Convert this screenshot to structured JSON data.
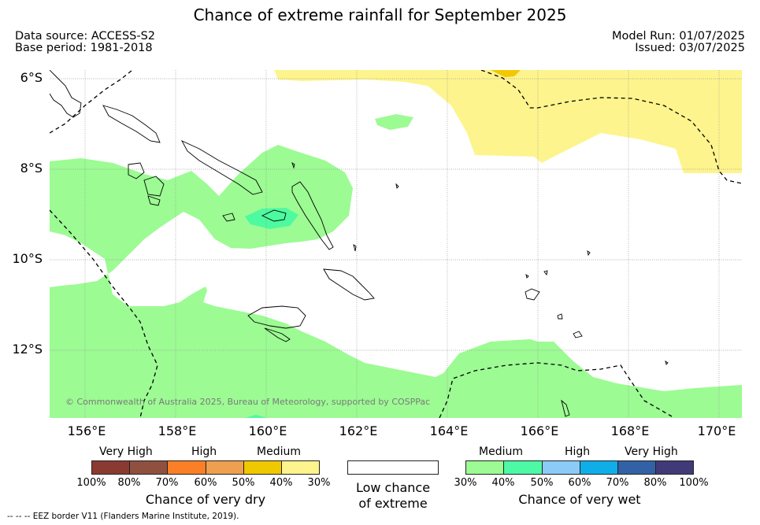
{
  "title": "Chance of extreme rainfall for September 2025",
  "meta": {
    "data_source": "Data source: ACCESS-S2",
    "base_period": "Base period: 1981-2018",
    "model_run": "Model Run: 01/07/2025",
    "issued": "Issued: 03/07/2025"
  },
  "map": {
    "latitude_labels": [
      "6°S",
      "8°S",
      "10°S",
      "12°S"
    ],
    "longitude_labels": [
      "156°E",
      "158°E",
      "160°E",
      "162°E",
      "164°E",
      "166°E",
      "168°E",
      "170°E"
    ],
    "copyright": "© Commonwealth of Australia 2025, Bureau of Meteorology, supported by COSPPac",
    "colors": {
      "dry_30_40": "#fdf48d",
      "dry_40_50": "#f2c800",
      "wet_30_40": "#9cfb93",
      "wet_40_50": "#4dfaa0",
      "coastline": "#000000"
    }
  },
  "legend": {
    "dry": {
      "headers": [
        "Very High",
        "High",
        "Medium"
      ],
      "ticks": [
        "100%",
        "80%",
        "70%",
        "60%",
        "50%",
        "40%",
        "30%"
      ],
      "colors": [
        "#8b3a32",
        "#8f5040",
        "#fa7f26",
        "#eea04f",
        "#f0c800",
        "#fdf48d"
      ],
      "caption": "Chance of very dry"
    },
    "neutral": {
      "caption_line1": "Low chance",
      "caption_line2": "of extreme",
      "color": "#ffffff"
    },
    "wet": {
      "headers": [
        "Medium",
        "High",
        "Very High"
      ],
      "ticks": [
        "30%",
        "40%",
        "50%",
        "60%",
        "70%",
        "80%",
        "100%"
      ],
      "colors": [
        "#9cfb93",
        "#4ef9a5",
        "#8ccbf8",
        "#10aee8",
        "#3261a5",
        "#413a78"
      ],
      "caption": "Chance of very wet"
    }
  },
  "footnote": "-- -- -- EEZ border V11 (Flanders Marine Institute, 2019)."
}
